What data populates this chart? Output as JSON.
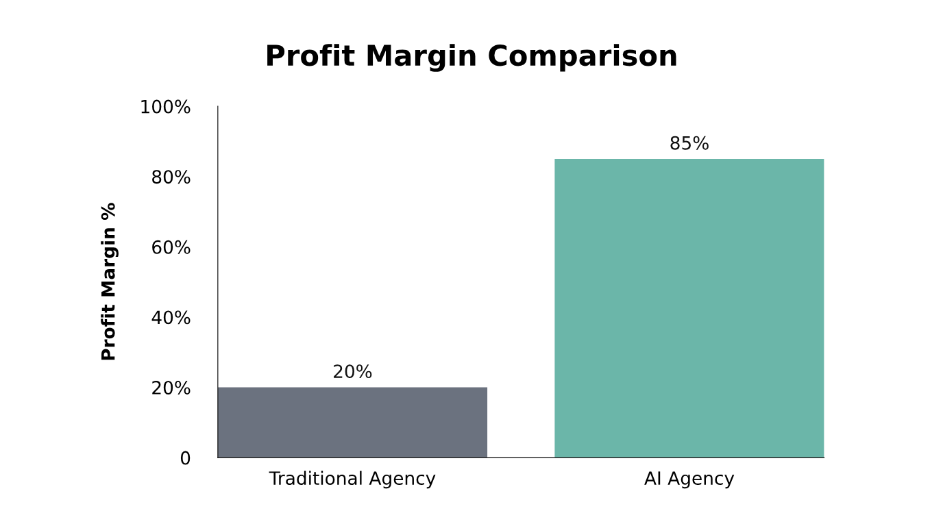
{
  "chart_data": {
    "type": "bar",
    "title": "Profit Margin Comparison",
    "ylabel": "Profit Margin %",
    "categories": [
      "Traditional Agency",
      "AI Agency"
    ],
    "values": [
      20,
      85
    ],
    "colors": [
      "#6b727f",
      "#6bb6a9"
    ],
    "value_labels": [
      "20%",
      "85%"
    ],
    "ylim": [
      0,
      100
    ],
    "yticks": [
      0,
      {
        "value": 20,
        "label": "20%"
      },
      {
        "value": 40,
        "label": "40%"
      },
      {
        "value": 60,
        "label": "60%"
      },
      {
        "value": 80,
        "label": "80%"
      },
      {
        "value": 100,
        "label": "100%"
      }
    ],
    "grid": false,
    "legend": false
  }
}
